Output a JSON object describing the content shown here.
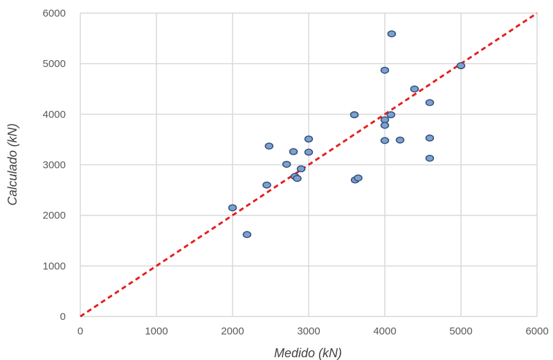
{
  "chart_data": {
    "type": "scatter",
    "title": "",
    "xlabel": "Medido (kN)",
    "ylabel": "Calculado (kN)",
    "xlim": [
      0,
      6000
    ],
    "ylim": [
      0,
      6000
    ],
    "x_ticks": [
      "0",
      "1000",
      "2000",
      "3000",
      "4000",
      "5000",
      "6000"
    ],
    "y_ticks": [
      "0",
      "1000",
      "2000",
      "3000",
      "4000",
      "5000",
      "6000"
    ],
    "grid": true,
    "legend": "none",
    "series": [
      {
        "points": [
          [
            2000,
            2150
          ],
          [
            2190,
            1620
          ],
          [
            2450,
            2600
          ],
          [
            2480,
            3370
          ],
          [
            2710,
            3010
          ],
          [
            2800,
            3260
          ],
          [
            2820,
            2770
          ],
          [
            2850,
            2730
          ],
          [
            2900,
            2920
          ],
          [
            3000,
            3510
          ],
          [
            3000,
            3250
          ],
          [
            3600,
            3990
          ],
          [
            3610,
            2700
          ],
          [
            3650,
            2740
          ],
          [
            4000,
            4870
          ],
          [
            4000,
            3890
          ],
          [
            4000,
            3780
          ],
          [
            4000,
            3480
          ],
          [
            4080,
            3990
          ],
          [
            4090,
            5590
          ],
          [
            4200,
            3490
          ],
          [
            4390,
            4500
          ],
          [
            4590,
            4230
          ],
          [
            4590,
            3530
          ],
          [
            4590,
            3130
          ],
          [
            5000,
            4960
          ]
        ],
        "marker_fill": "#7fa0cf",
        "marker_stroke": "#2f4f7a"
      }
    ],
    "reference_line": {
      "from": [
        0,
        0
      ],
      "to": [
        6000,
        6000
      ],
      "color": "#e81c1c",
      "style": "dashed"
    },
    "grid_color": "#d9d9d9"
  }
}
